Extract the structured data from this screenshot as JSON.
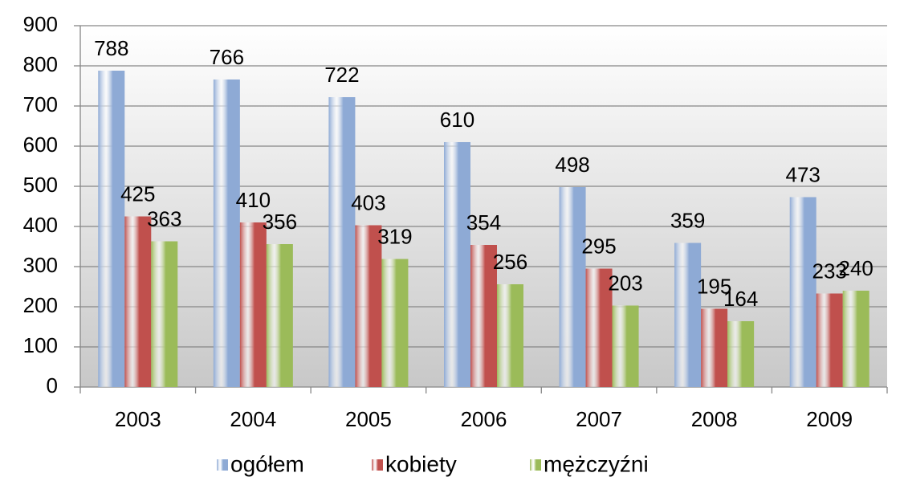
{
  "chart_data": {
    "type": "bar",
    "categories": [
      "2003",
      "2004",
      "2005",
      "2006",
      "2007",
      "2008",
      "2009"
    ],
    "series": [
      {
        "name": "ogółem",
        "color": "#8eaad5",
        "values": [
          788,
          766,
          722,
          610,
          498,
          359,
          473
        ]
      },
      {
        "name": "kobiety",
        "color": "#c0504d",
        "values": [
          425,
          410,
          403,
          354,
          295,
          195,
          233
        ]
      },
      {
        "name": "mężczyźni",
        "color": "#9bbb59",
        "values": [
          363,
          356,
          319,
          256,
          203,
          164,
          240
        ]
      }
    ],
    "ylim": [
      0,
      900
    ],
    "yticks": [
      0,
      100,
      200,
      300,
      400,
      500,
      600,
      700,
      800,
      900
    ],
    "grid": true,
    "legend": "bottom"
  }
}
